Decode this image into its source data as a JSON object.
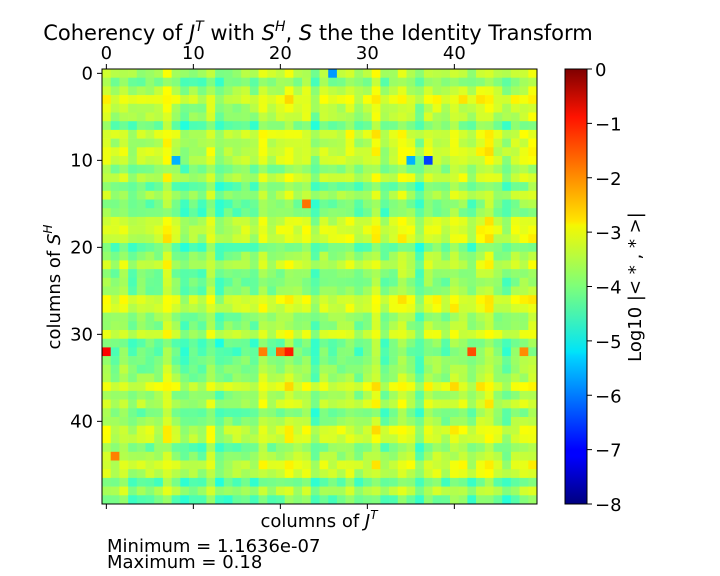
{
  "chart_data": {
    "type": "heatmap",
    "title": "Coherency of J^T with S^H, S the the Identity Transform",
    "title_parts": {
      "prefix": "Coherency of ",
      "j": "J",
      "j_sup": "T",
      "mid": " with ",
      "s": "S",
      "s_sup": "H",
      "comma": ", ",
      "s2": "S",
      "suffix": " the the Identity Transform"
    },
    "xlabel": "columns of J^T",
    "xlabel_parts": {
      "text": "columns of ",
      "j": "J",
      "sup": "T"
    },
    "ylabel": "columns of S^H",
    "ylabel_parts": {
      "text": "columns of ",
      "s": "S",
      "sup": "H"
    },
    "x_ticks": [
      "0",
      "10",
      "20",
      "30",
      "40"
    ],
    "y_ticks": [
      "0",
      "10",
      "20",
      "30",
      "40"
    ],
    "x_tick_position": "top",
    "rows": 50,
    "cols": 50,
    "colormap": "jet",
    "colorbar": {
      "label": "Log10 |< * , * >|",
      "range": [
        -8,
        0
      ],
      "ticks": [
        "0",
        "−1",
        "−2",
        "−3",
        "−4",
        "−5",
        "−6",
        "−7",
        "−8"
      ]
    },
    "typical_value_range": [
      -5,
      -2.5
    ],
    "notable_cells": [
      {
        "row": 32,
        "col": 0,
        "value": -1.0
      },
      {
        "row": 32,
        "col": 21,
        "value": -1.2
      },
      {
        "row": 32,
        "col": 20,
        "value": -1.8
      },
      {
        "row": 32,
        "col": 18,
        "value": -2.0
      },
      {
        "row": 32,
        "col": 42,
        "value": -1.6
      },
      {
        "row": 32,
        "col": 48,
        "value": -2.1
      },
      {
        "row": 10,
        "col": 37,
        "value": -6.5
      },
      {
        "row": 10,
        "col": 35,
        "value": -5.6
      },
      {
        "row": 10,
        "col": 8,
        "value": -5.6
      },
      {
        "row": 0,
        "col": 26,
        "value": -5.8
      },
      {
        "row": 15,
        "col": 23,
        "value": -1.9
      },
      {
        "row": 44,
        "col": 1,
        "value": -2.0
      }
    ],
    "stats": {
      "minimum": "Minimum = 1.1636e-07",
      "maximum": "Maximum = 0.18"
    }
  }
}
